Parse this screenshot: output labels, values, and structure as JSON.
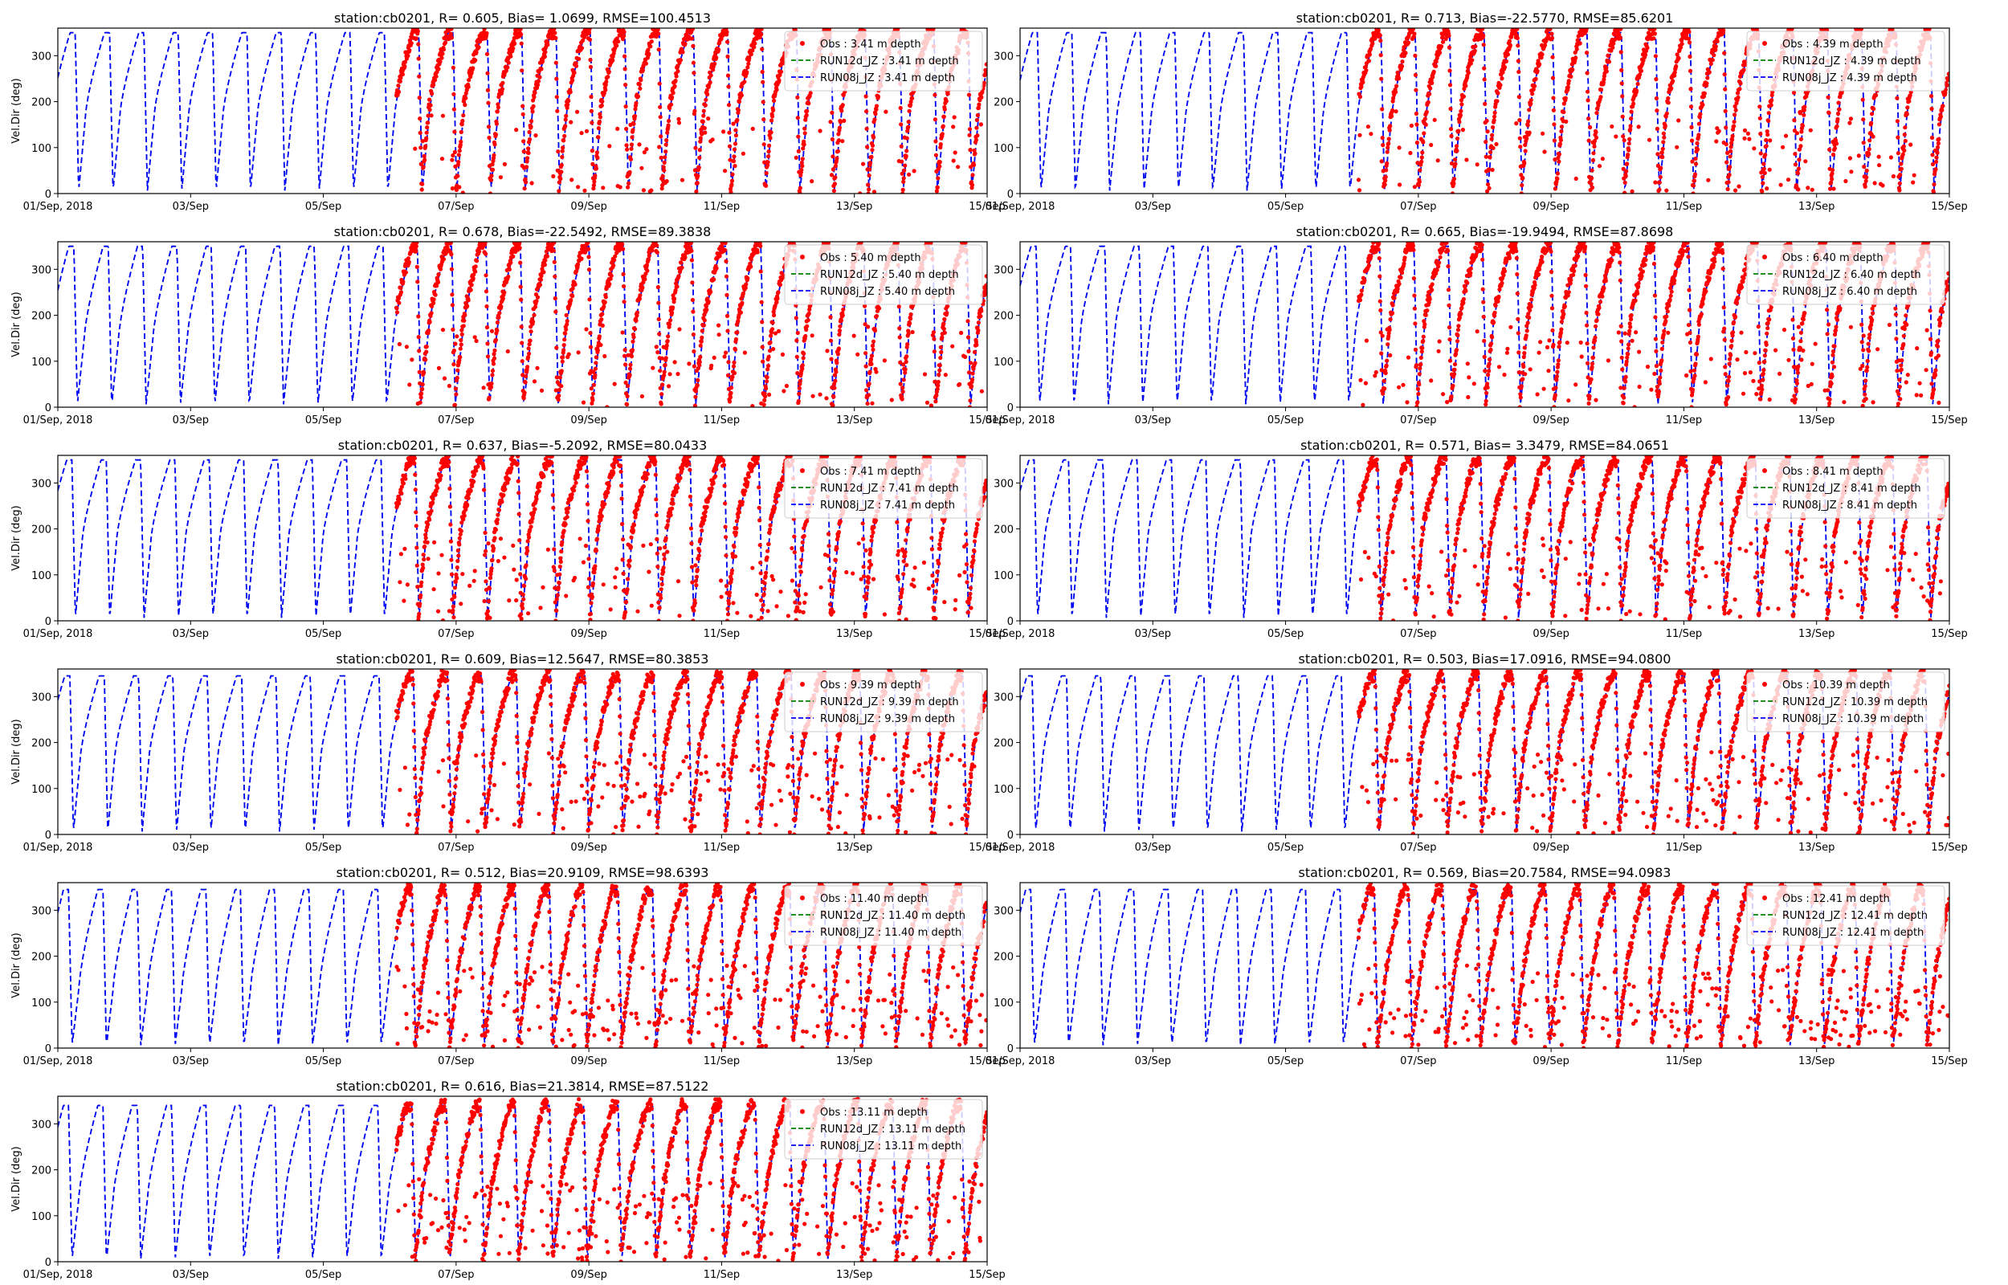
{
  "figure": {
    "xtick_labels": [
      "01/Sep, 2018",
      "03/Sep",
      "05/Sep",
      "07/Sep",
      "09/Sep",
      "11/Sep",
      "13/Sep",
      "15/Sep"
    ],
    "colors": {
      "obs": "#ff0000",
      "run12d": "#008000",
      "run08j": "#0000ff"
    }
  },
  "chart_data": [
    {
      "type": "line",
      "title": "station:cb0201, R= 0.605, Bias= 1.0699, RMSE=100.4513",
      "xlabel": "",
      "ylabel": "Vel.Dir (deg)",
      "x_range_days": [
        1,
        15
      ],
      "ylim": [
        0,
        360
      ],
      "yticks": [
        0,
        100,
        200,
        300
      ],
      "legend": [
        "Obs : 3.41 m depth",
        "RUN12d_JZ : 3.41 m depth",
        "RUN08j_JZ : 3.41 m depth"
      ],
      "legend_position": "top-right",
      "obs_start_day": 6.1,
      "model_profile": {
        "phase": 0.1,
        "trough": 170,
        "peak": 350
      },
      "series": [
        {
          "name": "RUN08j_JZ : 3.41 m depth",
          "points": [
            [
              1.0,
              170
            ],
            [
              1.25,
              350
            ],
            [
              1.35,
              20
            ],
            [
              1.5,
              170
            ],
            [
              1.75,
              350
            ],
            [
              1.85,
              5
            ],
            [
              2.0,
              165
            ],
            [
              2.25,
              350
            ],
            [
              2.35,
              10
            ],
            [
              2.5,
              170
            ]
          ]
        },
        {
          "name": "Obs : 3.41 m depth",
          "points": [
            [
              6.2,
              150
            ],
            [
              6.4,
              300
            ],
            [
              6.6,
              30
            ],
            [
              6.8,
              200
            ],
            [
              7.0,
              340
            ],
            [
              7.2,
              60
            ],
            [
              7.4,
              250
            ],
            [
              7.6,
              350
            ]
          ]
        }
      ]
    },
    {
      "type": "line",
      "title": "station:cb0201, R= 0.713, Bias=-22.5770, RMSE=85.6201",
      "xlabel": "",
      "ylabel": "",
      "x_range_days": [
        1,
        15
      ],
      "ylim": [
        0,
        360
      ],
      "yticks": [
        0,
        100,
        200,
        300
      ],
      "legend": [
        "Obs : 4.39 m depth",
        "RUN12d_JZ : 4.39 m depth",
        "RUN08j_JZ : 4.39 m depth"
      ],
      "legend_position": "top-right",
      "obs_start_day": 6.1,
      "model_profile": {
        "phase": 0.1,
        "trough": 160,
        "peak": 350
      },
      "series": [
        {
          "name": "RUN08j_JZ : 4.39 m depth",
          "points": [
            [
              1.0,
              165
            ],
            [
              1.25,
              350
            ],
            [
              1.35,
              10
            ],
            [
              1.5,
              160
            ],
            [
              1.75,
              350
            ],
            [
              1.85,
              5
            ],
            [
              2.0,
              160
            ]
          ]
        },
        {
          "name": "Obs : 4.39 m depth",
          "points": [
            [
              6.2,
              160
            ],
            [
              6.5,
              340
            ],
            [
              6.8,
              200
            ],
            [
              7.0,
              350
            ],
            [
              7.3,
              320
            ]
          ]
        }
      ]
    },
    {
      "type": "line",
      "title": "station:cb0201, R= 0.678, Bias=-22.5492, RMSE=89.3838",
      "xlabel": "",
      "ylabel": "Vel.Dir (deg)",
      "x_range_days": [
        1,
        15
      ],
      "ylim": [
        0,
        360
      ],
      "yticks": [
        0,
        100,
        200,
        300
      ],
      "legend": [
        "Obs : 5.40 m depth",
        "RUN12d_JZ : 5.40 m depth",
        "RUN08j_JZ : 5.40 m depth"
      ],
      "legend_position": "top-right",
      "obs_start_day": 6.1,
      "model_profile": {
        "phase": 0.12,
        "trough": 150,
        "peak": 350
      },
      "series": [
        {
          "name": "RUN08j_JZ : 5.40 m depth",
          "points": [
            [
              1.0,
              170
            ],
            [
              1.25,
              350
            ],
            [
              1.4,
              120
            ],
            [
              1.6,
              350
            ],
            [
              1.8,
              0
            ],
            [
              2.0,
              150
            ]
          ]
        },
        {
          "name": "Obs : 5.40 m depth",
          "points": [
            [
              6.2,
              170
            ],
            [
              6.5,
              340
            ],
            [
              6.8,
              190
            ],
            [
              7.0,
              340
            ],
            [
              8.9,
              100
            ]
          ]
        }
      ]
    },
    {
      "type": "line",
      "title": "station:cb0201, R= 0.665, Bias=-19.9494, RMSE=87.8698",
      "xlabel": "",
      "ylabel": "",
      "x_range_days": [
        1,
        15
      ],
      "ylim": [
        0,
        360
      ],
      "yticks": [
        0,
        100,
        200,
        300
      ],
      "legend": [
        "Obs : 6.40 m depth",
        "RUN12d_JZ : 6.40 m depth",
        "RUN08j_JZ : 6.40 m depth"
      ],
      "legend_position": "top-right",
      "obs_start_day": 6.1,
      "model_profile": {
        "phase": 0.12,
        "trough": 170,
        "peak": 350
      },
      "series": [
        {
          "name": "RUN08j_JZ : 6.40 m depth",
          "points": [
            [
              1.0,
              190
            ],
            [
              1.25,
              350
            ],
            [
              1.5,
              170
            ],
            [
              1.75,
              350
            ],
            [
              1.85,
              0
            ]
          ]
        },
        {
          "name": "Obs : 6.40 m depth",
          "points": [
            [
              6.2,
              200
            ],
            [
              6.6,
              340
            ],
            [
              7.0,
              200
            ],
            [
              7.4,
              340
            ],
            [
              8.9,
              120
            ]
          ]
        }
      ]
    },
    {
      "type": "line",
      "title": "station:cb0201, R= 0.637, Bias=-5.2092, RMSE=80.0433",
      "xlabel": "",
      "ylabel": "Vel.Dir (deg)",
      "x_range_days": [
        1,
        15
      ],
      "ylim": [
        0,
        360
      ],
      "yticks": [
        0,
        100,
        200,
        300
      ],
      "legend": [
        "Obs : 7.41 m depth",
        "RUN12d_JZ : 7.41 m depth",
        "RUN08j_JZ : 7.41 m depth"
      ],
      "legend_position": "top-right",
      "obs_start_day": 6.1,
      "model_profile": {
        "phase": 0.15,
        "trough": 175,
        "peak": 350
      },
      "series": [
        {
          "name": "RUN08j_JZ : 7.41 m depth",
          "points": [
            [
              1.0,
              200
            ],
            [
              1.2,
              350
            ],
            [
              1.5,
              175
            ],
            [
              1.7,
              350
            ],
            [
              1.9,
              0
            ]
          ]
        },
        {
          "name": "Obs : 7.41 m depth",
          "points": [
            [
              6.2,
              250
            ],
            [
              6.5,
              350
            ],
            [
              6.8,
              180
            ],
            [
              7.1,
              350
            ],
            [
              8.3,
              100
            ]
          ]
        }
      ]
    },
    {
      "type": "line",
      "title": "station:cb0201, R= 0.571, Bias= 3.3479, RMSE=84.0651",
      "xlabel": "",
      "ylabel": "",
      "x_range_days": [
        1,
        15
      ],
      "ylim": [
        0,
        360
      ],
      "yticks": [
        0,
        100,
        200,
        300
      ],
      "legend": [
        "Obs : 8.41 m depth",
        "RUN12d_JZ : 8.41 m depth",
        "RUN08j_JZ : 8.41 m depth"
      ],
      "legend_position": "top-right",
      "obs_start_day": 6.1,
      "model_profile": {
        "phase": 0.15,
        "trough": 175,
        "peak": 350
      },
      "series": [
        {
          "name": "RUN08j_JZ : 8.41 m depth",
          "points": [
            [
              1.0,
              200
            ],
            [
              1.2,
              350
            ],
            [
              1.5,
              180
            ],
            [
              1.7,
              350
            ],
            [
              2.3,
              30
            ]
          ]
        },
        {
          "name": "Obs : 8.41 m depth",
          "points": [
            [
              6.2,
              250
            ],
            [
              6.5,
              350
            ],
            [
              6.8,
              200
            ],
            [
              7.1,
              350
            ],
            [
              7.4,
              100
            ]
          ]
        }
      ]
    },
    {
      "type": "line",
      "title": "station:cb0201, R= 0.609, Bias=12.5647, RMSE=80.3853",
      "xlabel": "",
      "ylabel": "Vel.Dir (deg)",
      "x_range_days": [
        1,
        15
      ],
      "ylim": [
        0,
        360
      ],
      "yticks": [
        0,
        100,
        200,
        300
      ],
      "legend": [
        "Obs : 9.39 m depth",
        "RUN12d_JZ : 9.39 m depth",
        "RUN08j_JZ : 9.39 m depth"
      ],
      "legend_position": "top-right",
      "obs_start_day": 6.1,
      "model_profile": {
        "phase": 0.18,
        "trough": 165,
        "peak": 345
      },
      "series": [
        {
          "name": "RUN08j_JZ : 9.39 m depth",
          "points": [
            [
              1.0,
              190
            ],
            [
              1.15,
              340
            ],
            [
              1.5,
              165
            ],
            [
              1.7,
              345
            ],
            [
              2.0,
              150
            ]
          ]
        },
        {
          "name": "Obs : 9.39 m depth",
          "points": [
            [
              6.2,
              300
            ],
            [
              6.5,
              350
            ],
            [
              6.8,
              200
            ],
            [
              7.1,
              350
            ],
            [
              7.2,
              0
            ]
          ]
        }
      ]
    },
    {
      "type": "line",
      "title": "station:cb0201, R= 0.503, Bias=17.0916, RMSE=94.0800",
      "xlabel": "",
      "ylabel": "",
      "x_range_days": [
        1,
        15
      ],
      "ylim": [
        0,
        360
      ],
      "yticks": [
        0,
        100,
        200,
        300
      ],
      "legend": [
        "Obs : 10.39 m depth",
        "RUN12d_JZ : 10.39 m depth",
        "RUN08j_JZ : 10.39 m depth"
      ],
      "legend_position": "top-right",
      "obs_start_day": 6.1,
      "model_profile": {
        "phase": 0.18,
        "trough": 160,
        "peak": 345
      },
      "series": [
        {
          "name": "RUN08j_JZ : 10.39 m depth",
          "points": [
            [
              1.0,
              200
            ],
            [
              1.15,
              340
            ],
            [
              1.5,
              160
            ],
            [
              1.7,
              345
            ],
            [
              2.0,
              140
            ]
          ]
        },
        {
          "name": "Obs : 10.39 m depth",
          "points": [
            [
              6.2,
              300
            ],
            [
              6.5,
              350
            ],
            [
              6.8,
              180
            ],
            [
              7.1,
              350
            ],
            [
              7.3,
              0
            ]
          ]
        }
      ]
    },
    {
      "type": "line",
      "title": "station:cb0201, R= 0.512, Bias=20.9109, RMSE=98.6393",
      "xlabel": "",
      "ylabel": "Vel.Dir (deg)",
      "x_range_days": [
        1,
        15
      ],
      "ylim": [
        0,
        360
      ],
      "yticks": [
        0,
        100,
        200,
        300
      ],
      "legend": [
        "Obs : 11.40 m depth",
        "RUN12d_JZ : 11.40 m depth",
        "RUN08j_JZ : 11.40 m depth"
      ],
      "legend_position": "top-right",
      "obs_start_day": 6.1,
      "model_profile": {
        "phase": 0.2,
        "trough": 130,
        "peak": 345
      },
      "series": [
        {
          "name": "RUN08j_JZ : 11.40 m depth",
          "points": [
            [
              1.0,
              150
            ],
            [
              1.1,
              340
            ],
            [
              1.5,
              180
            ],
            [
              1.9,
              0
            ],
            [
              2.2,
              340
            ]
          ]
        },
        {
          "name": "Obs : 11.40 m depth",
          "points": [
            [
              6.2,
              300
            ],
            [
              6.5,
              160
            ],
            [
              6.8,
              350
            ],
            [
              7.1,
              150
            ],
            [
              7.2,
              0
            ]
          ]
        }
      ]
    },
    {
      "type": "line",
      "title": "station:cb0201, R= 0.569, Bias=20.7584, RMSE=94.0983",
      "xlabel": "",
      "ylabel": "",
      "x_range_days": [
        1,
        15
      ],
      "ylim": [
        0,
        360
      ],
      "yticks": [
        0,
        100,
        200,
        300
      ],
      "legend": [
        "Obs : 12.41 m depth",
        "RUN12d_JZ : 12.41 m depth",
        "RUN08j_JZ : 12.41 m depth"
      ],
      "legend_position": "top-right",
      "obs_start_day": 6.1,
      "model_profile": {
        "phase": 0.2,
        "trough": 130,
        "peak": 345
      },
      "series": [
        {
          "name": "RUN08j_JZ : 12.41 m depth",
          "points": [
            [
              1.0,
              130
            ],
            [
              1.1,
              340
            ],
            [
              1.5,
              190
            ],
            [
              1.9,
              0
            ],
            [
              2.2,
              340
            ]
          ]
        },
        {
          "name": "Obs : 12.41 m depth",
          "points": [
            [
              6.2,
              300
            ],
            [
              6.5,
              160
            ],
            [
              6.8,
              350
            ],
            [
              7.1,
              150
            ],
            [
              7.2,
              0
            ]
          ]
        }
      ]
    },
    {
      "type": "line",
      "title": "station:cb0201, R= 0.616, Bias=21.3814, RMSE=87.5122",
      "xlabel": "",
      "ylabel": "Vel.Dir (deg)",
      "x_range_days": [
        1,
        15
      ],
      "ylim": [
        0,
        360
      ],
      "yticks": [
        0,
        100,
        200,
        300
      ],
      "legend": [
        "Obs : 13.11 m depth",
        "RUN12d_JZ : 13.11 m depth",
        "RUN08j_JZ : 13.11 m depth"
      ],
      "legend_position": "top-right",
      "obs_start_day": 6.1,
      "model_profile": {
        "phase": 0.2,
        "trough": 140,
        "peak": 340
      },
      "series": [
        {
          "name": "RUN08j_JZ : 13.11 m depth",
          "points": [
            [
              1.0,
              140
            ],
            [
              1.1,
              340
            ],
            [
              1.5,
              180
            ],
            [
              1.9,
              50
            ],
            [
              2.2,
              340
            ]
          ]
        },
        {
          "name": "Obs : 13.11 m depth",
          "points": [
            [
              6.2,
              260
            ],
            [
              6.5,
              160
            ],
            [
              6.8,
              350
            ],
            [
              7.1,
              150
            ],
            [
              7.2,
              20
            ]
          ]
        }
      ]
    }
  ]
}
